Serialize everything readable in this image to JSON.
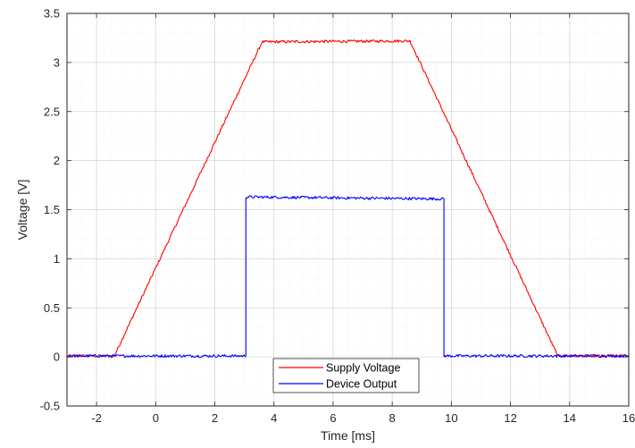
{
  "chart_data": {
    "type": "line",
    "xlabel": "Time [ms]",
    "ylabel": "Voltage [V]",
    "xlim": [
      -3,
      16
    ],
    "ylim": [
      -0.5,
      3.5
    ],
    "x_ticks": [
      -2,
      0,
      2,
      4,
      6,
      8,
      10,
      12,
      14,
      16
    ],
    "x_tick_labels": [
      "-2",
      "0",
      "2",
      "4",
      "6",
      "8",
      "10",
      "12",
      "14",
      "16"
    ],
    "y_ticks": [
      -0.5,
      0,
      0.5,
      1,
      1.5,
      2,
      2.5,
      3,
      3.5
    ],
    "y_tick_labels": [
      "-0.5",
      "0",
      "0.5",
      "1",
      "1.5",
      "2",
      "2.5",
      "3",
      "3.5"
    ],
    "grid": "major and minor, dotted",
    "legend_position": "bottom-center",
    "series": [
      {
        "name": "Supply Voltage",
        "color": "#ff0000",
        "x": [
          -3,
          -1.4,
          3.6,
          8.6,
          13.6,
          16
        ],
        "y": [
          0.01,
          0.01,
          3.21,
          3.22,
          0.01,
          0.01
        ]
      },
      {
        "name": "Device Output",
        "color": "#0000ff",
        "x": [
          -3,
          3.05,
          3.05,
          9.75,
          9.75,
          16
        ],
        "y": [
          0.01,
          0.01,
          1.63,
          1.61,
          0.01,
          0.01
        ]
      }
    ]
  }
}
